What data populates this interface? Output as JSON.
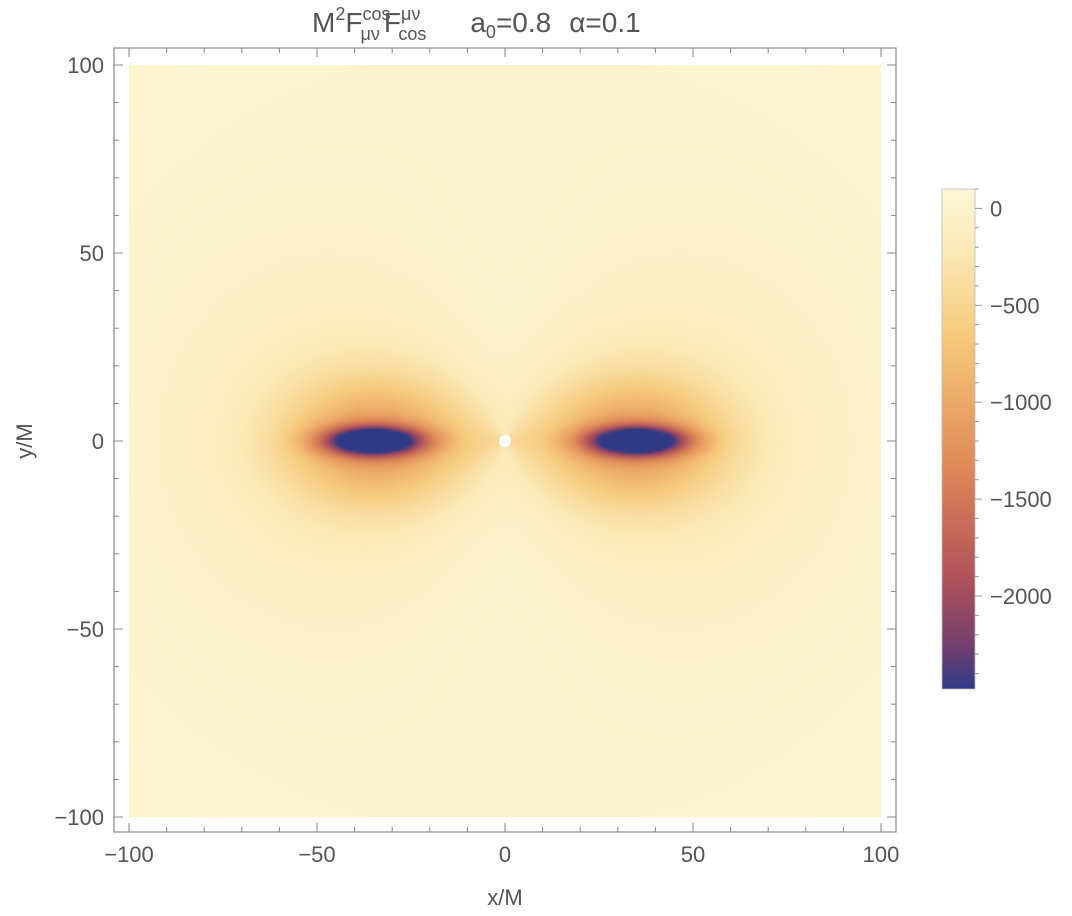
{
  "chart_data": {
    "type": "heatmap",
    "title": {
      "quantity": {
        "base": "M",
        "sup1": "2",
        "f1": "F",
        "sup2": "cos",
        "sub2": "μν",
        "f2": "F",
        "sup3": "μν",
        "sub3": "cos"
      },
      "param1": {
        "sym": "a",
        "sub": "0",
        "value": "=0.8"
      },
      "param2": {
        "sym": "α",
        "value": "=0.1"
      }
    },
    "xlabel": "x/M",
    "ylabel": "y/M",
    "xlim": [
      -100,
      100
    ],
    "ylim": [
      -100,
      100
    ],
    "x_ticks": [
      {
        "value": -100,
        "label": "−100"
      },
      {
        "value": -50,
        "label": "−50"
      },
      {
        "value": 0,
        "label": "0"
      },
      {
        "value": 50,
        "label": "50"
      },
      {
        "value": 100,
        "label": "100"
      }
    ],
    "y_ticks": [
      {
        "value": 100,
        "label": "100"
      },
      {
        "value": 50,
        "label": "50"
      },
      {
        "value": 0,
        "label": "0"
      },
      {
        "value": -50,
        "label": "−50"
      },
      {
        "value": -100,
        "label": "−100"
      }
    ],
    "colorbar": {
      "range": [
        -2480,
        100
      ],
      "ticks": [
        {
          "value": 0,
          "label": "0"
        },
        {
          "value": -500,
          "label": "−500"
        },
        {
          "value": -1000,
          "label": "−1000"
        },
        {
          "value": -1500,
          "label": "−1500"
        },
        {
          "value": -2000,
          "label": "−2000"
        }
      ],
      "colors": [
        "#fdf6d6",
        "#fbeab8",
        "#f6c97a",
        "#e08a58",
        "#b0515a",
        "#6e3f6e",
        "#2f3a86"
      ]
    },
    "features": [
      {
        "name": "left-lobe",
        "x": -35,
        "y": 0,
        "min_value": -2450
      },
      {
        "name": "right-lobe",
        "x": 35,
        "y": 0,
        "min_value": -2450
      },
      {
        "name": "origin-hole",
        "x": 0,
        "y": 0
      }
    ]
  }
}
